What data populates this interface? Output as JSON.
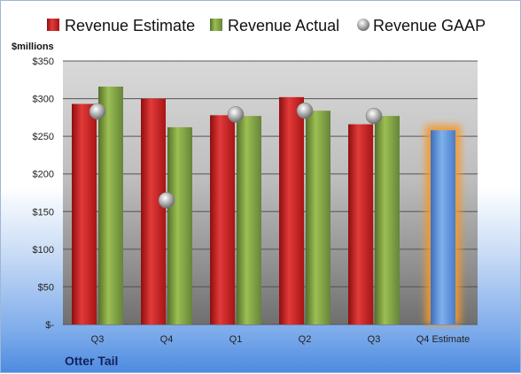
{
  "chart_data": {
    "type": "bar",
    "company": "Otter Tail",
    "ylabel": "$millions",
    "ylim": [
      0,
      350
    ],
    "yticks": [
      {
        "value": 0,
        "label": "$-"
      },
      {
        "value": 50,
        "label": "$50"
      },
      {
        "value": 100,
        "label": "$100"
      },
      {
        "value": 150,
        "label": "$150"
      },
      {
        "value": 200,
        "label": "$200"
      },
      {
        "value": 250,
        "label": "$250"
      },
      {
        "value": 300,
        "label": "$300"
      },
      {
        "value": 350,
        "label": "$350"
      }
    ],
    "categories": [
      "Q3",
      "Q4",
      "Q1",
      "Q2",
      "Q3",
      "Q4 Estimate"
    ],
    "series": [
      {
        "name": "Revenue Estimate",
        "type": "bar",
        "color": "#cc1f1f",
        "values": [
          293,
          300,
          278,
          302,
          266,
          null
        ]
      },
      {
        "name": "Revenue Actual",
        "type": "bar",
        "color": "#7a9c38",
        "values": [
          316,
          262,
          277,
          284,
          277,
          null
        ]
      },
      {
        "name": "Revenue GAAP",
        "type": "marker",
        "color": "#a8a8a8",
        "values": [
          283,
          165,
          279,
          284,
          277,
          null
        ]
      },
      {
        "name": "Q4 Estimate",
        "type": "bar",
        "color": "#5b8fd6",
        "values": [
          null,
          null,
          null,
          null,
          null,
          258
        ],
        "legend": false
      }
    ],
    "legend_position": "top",
    "grid": true
  }
}
